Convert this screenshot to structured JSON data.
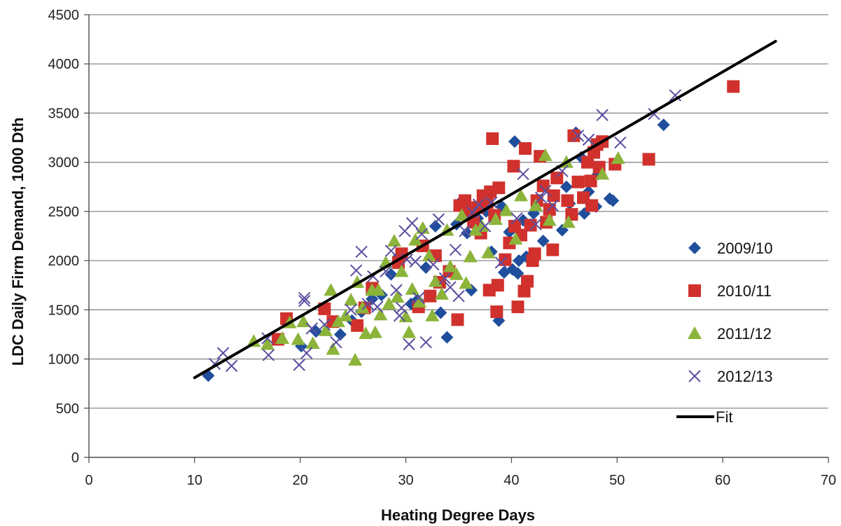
{
  "chart_data": {
    "type": "scatter",
    "xlabel": "Heating Degree Days",
    "ylabel": "LDC Daily Firm Demand, 1000 Dth",
    "xlim": [
      0,
      70
    ],
    "ylim": [
      0,
      4500
    ],
    "xticks": [
      "0",
      "10",
      "20",
      "30",
      "40",
      "50",
      "60",
      "70"
    ],
    "yticks": [
      "0",
      "500",
      "1000",
      "1500",
      "2000",
      "2500",
      "3000",
      "3500",
      "4000",
      "4500"
    ],
    "grid": "horizontal",
    "legend_position": "right",
    "series": [
      {
        "name": "2009/10",
        "marker": "diamond",
        "color": "#1f4e9c",
        "points": [
          [
            11.3,
            830
          ],
          [
            20.1,
            1130
          ],
          [
            21.5,
            1280
          ],
          [
            23.8,
            1250
          ],
          [
            24.9,
            1390
          ],
          [
            25.8,
            1480
          ],
          [
            26.8,
            1610
          ],
          [
            27.7,
            1650
          ],
          [
            28.6,
            1860
          ],
          [
            29.3,
            2040
          ],
          [
            30.5,
            1560
          ],
          [
            31.1,
            1600
          ],
          [
            31.9,
            1930
          ],
          [
            32.8,
            2350
          ],
          [
            33.3,
            1470
          ],
          [
            33.9,
            1220
          ],
          [
            34.8,
            2370
          ],
          [
            35.2,
            2600
          ],
          [
            35.8,
            2280
          ],
          [
            36.2,
            1700
          ],
          [
            36.8,
            2430
          ],
          [
            37.6,
            2500
          ],
          [
            38.1,
            2090
          ],
          [
            38.8,
            1390
          ],
          [
            39.1,
            2550
          ],
          [
            39.3,
            1880
          ],
          [
            39.8,
            2290
          ],
          [
            40.1,
            1910
          ],
          [
            40.3,
            3210
          ],
          [
            40.6,
            1870
          ],
          [
            41.1,
            2410
          ],
          [
            41.4,
            2040
          ],
          [
            42.1,
            2480
          ],
          [
            43.0,
            2200
          ],
          [
            44.8,
            2310
          ],
          [
            45.2,
            2750
          ],
          [
            45.5,
            2580
          ],
          [
            45.8,
            2470
          ],
          [
            46.1,
            3300
          ],
          [
            46.6,
            3050
          ],
          [
            46.9,
            2480
          ],
          [
            47.3,
            2700
          ],
          [
            48.0,
            2550
          ],
          [
            49.3,
            2630
          ],
          [
            49.6,
            2610
          ],
          [
            54.4,
            3380
          ],
          [
            48.2,
            2880
          ],
          [
            40.7,
            2000
          ]
        ]
      },
      {
        "name": "2010/11",
        "marker": "square",
        "color": "#d0312d",
        "points": [
          [
            17.9,
            1200
          ],
          [
            18.7,
            1410
          ],
          [
            22.3,
            1510
          ],
          [
            23.1,
            1380
          ],
          [
            25.4,
            1340
          ],
          [
            26.1,
            1520
          ],
          [
            26.8,
            1720
          ],
          [
            29.3,
            1980
          ],
          [
            29.6,
            2070
          ],
          [
            31.2,
            1530
          ],
          [
            31.6,
            2150
          ],
          [
            32.3,
            1640
          ],
          [
            32.8,
            2050
          ],
          [
            33.2,
            1780
          ],
          [
            34.1,
            1890
          ],
          [
            34.9,
            1400
          ],
          [
            35.1,
            2560
          ],
          [
            35.6,
            2610
          ],
          [
            36.1,
            2510
          ],
          [
            36.4,
            2390
          ],
          [
            36.8,
            2540
          ],
          [
            37.1,
            2280
          ],
          [
            37.3,
            2660
          ],
          [
            37.7,
            2590
          ],
          [
            38.0,
            2700
          ],
          [
            37.9,
            1700
          ],
          [
            38.2,
            3240
          ],
          [
            38.4,
            2460
          ],
          [
            38.7,
            1750
          ],
          [
            38.8,
            2740
          ],
          [
            38.6,
            1480
          ],
          [
            39.4,
            2010
          ],
          [
            39.8,
            2180
          ],
          [
            40.2,
            2960
          ],
          [
            40.3,
            2350
          ],
          [
            40.6,
            1530
          ],
          [
            40.9,
            2260
          ],
          [
            41.2,
            1690
          ],
          [
            41.3,
            3140
          ],
          [
            41.5,
            1790
          ],
          [
            41.8,
            2360
          ],
          [
            42.2,
            2070
          ],
          [
            42.4,
            2610
          ],
          [
            42.7,
            3060
          ],
          [
            43.0,
            2760
          ],
          [
            43.3,
            2390
          ],
          [
            43.6,
            2520
          ],
          [
            44.0,
            2660
          ],
          [
            44.3,
            2840
          ],
          [
            43.9,
            2110
          ],
          [
            45.3,
            2610
          ],
          [
            45.7,
            2470
          ],
          [
            45.9,
            3270
          ],
          [
            46.3,
            2800
          ],
          [
            46.8,
            2640
          ],
          [
            47.2,
            3000
          ],
          [
            47.6,
            2560
          ],
          [
            47.8,
            3100
          ],
          [
            48.1,
            3180
          ],
          [
            48.6,
            3210
          ],
          [
            48.3,
            2950
          ],
          [
            49.8,
            2980
          ],
          [
            53.0,
            3030
          ],
          [
            61.0,
            3770
          ],
          [
            47.5,
            2810
          ],
          [
            42.0,
            2000
          ]
        ]
      },
      {
        "name": "2011/12",
        "marker": "triangle",
        "color": "#8cb43a",
        "points": [
          [
            15.6,
            1180
          ],
          [
            16.9,
            1150
          ],
          [
            18.3,
            1210
          ],
          [
            19.0,
            1370
          ],
          [
            19.8,
            1200
          ],
          [
            20.3,
            1380
          ],
          [
            21.2,
            1160
          ],
          [
            22.4,
            1290
          ],
          [
            23.1,
            1100
          ],
          [
            23.6,
            1380
          ],
          [
            24.3,
            1440
          ],
          [
            24.8,
            1600
          ],
          [
            25.2,
            990
          ],
          [
            25.4,
            1780
          ],
          [
            25.9,
            1520
          ],
          [
            26.2,
            1260
          ],
          [
            26.8,
            1700
          ],
          [
            27.1,
            1270
          ],
          [
            27.6,
            1450
          ],
          [
            28.1,
            1980
          ],
          [
            28.4,
            1560
          ],
          [
            28.9,
            2200
          ],
          [
            29.2,
            1630
          ],
          [
            29.6,
            1890
          ],
          [
            30.0,
            1430
          ],
          [
            30.3,
            1270
          ],
          [
            30.6,
            1710
          ],
          [
            30.9,
            2210
          ],
          [
            31.3,
            1580
          ],
          [
            31.6,
            2330
          ],
          [
            32.2,
            2050
          ],
          [
            32.5,
            1440
          ],
          [
            32.8,
            1790
          ],
          [
            33.4,
            1660
          ],
          [
            33.9,
            2310
          ],
          [
            34.2,
            1940
          ],
          [
            34.8,
            1860
          ],
          [
            35.3,
            2460
          ],
          [
            35.7,
            1770
          ],
          [
            36.1,
            2040
          ],
          [
            36.6,
            2310
          ],
          [
            37.2,
            2350
          ],
          [
            37.8,
            2080
          ],
          [
            38.5,
            2420
          ],
          [
            39.5,
            2510
          ],
          [
            40.4,
            2220
          ],
          [
            40.9,
            2660
          ],
          [
            42.3,
            2560
          ],
          [
            43.2,
            3070
          ],
          [
            43.6,
            2410
          ],
          [
            45.2,
            3000
          ],
          [
            45.4,
            2390
          ],
          [
            48.6,
            2880
          ],
          [
            50.1,
            3040
          ],
          [
            22.9,
            1700
          ],
          [
            27.4,
            1700
          ]
        ]
      },
      {
        "name": "2012/13",
        "marker": "cross",
        "color": "#5a4fa0",
        "points": [
          [
            11.9,
            950
          ],
          [
            12.7,
            1060
          ],
          [
            13.5,
            930
          ],
          [
            16.9,
            1210
          ],
          [
            17.0,
            1040
          ],
          [
            19.9,
            940
          ],
          [
            20.4,
            1620
          ],
          [
            20.6,
            1060
          ],
          [
            21.1,
            1310
          ],
          [
            22.3,
            1350
          ],
          [
            23.4,
            1170
          ],
          [
            24.8,
            1500
          ],
          [
            25.3,
            1900
          ],
          [
            25.8,
            2090
          ],
          [
            26.4,
            1560
          ],
          [
            26.9,
            1840
          ],
          [
            27.3,
            1530
          ],
          [
            28.1,
            1890
          ],
          [
            28.6,
            2100
          ],
          [
            29.1,
            1700
          ],
          [
            29.4,
            1440
          ],
          [
            29.9,
            2300
          ],
          [
            30.1,
            2010
          ],
          [
            30.3,
            1150
          ],
          [
            30.6,
            2380
          ],
          [
            30.9,
            1990
          ],
          [
            31.2,
            1620
          ],
          [
            31.5,
            2270
          ],
          [
            31.9,
            1170
          ],
          [
            32.6,
            1960
          ],
          [
            33.1,
            2420
          ],
          [
            33.7,
            1820
          ],
          [
            34.2,
            1730
          ],
          [
            34.7,
            2110
          ],
          [
            35.0,
            1640
          ],
          [
            35.6,
            2300
          ],
          [
            36.3,
            2490
          ],
          [
            36.9,
            2570
          ],
          [
            37.5,
            2350
          ],
          [
            38.1,
            2590
          ],
          [
            39.0,
            1980
          ],
          [
            40.5,
            2430
          ],
          [
            41.1,
            2880
          ],
          [
            42.3,
            2370
          ],
          [
            42.8,
            2640
          ],
          [
            43.2,
            2710
          ],
          [
            43.9,
            2560
          ],
          [
            44.8,
            2910
          ],
          [
            46.3,
            3270
          ],
          [
            47.3,
            3230
          ],
          [
            48.6,
            3480
          ],
          [
            50.3,
            3200
          ],
          [
            53.5,
            3490
          ],
          [
            55.5,
            3680
          ],
          [
            20.4,
            1590
          ],
          [
            29.6,
            1520
          ]
        ]
      }
    ],
    "fit": {
      "name": "Fit",
      "color": "#000000",
      "x": [
        10,
        65
      ],
      "y": [
        810,
        4230
      ]
    }
  }
}
